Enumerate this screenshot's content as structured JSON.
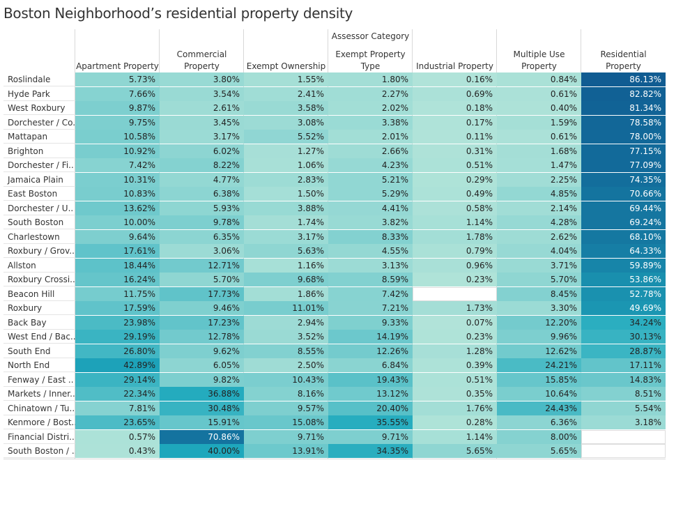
{
  "title": "Boston Neighborhood’s residential property density",
  "chart_data": {
    "type": "heatmap",
    "title": "Boston Neighborhood’s residential property density",
    "column_axis_label": "Assessor Category",
    "columns": [
      [
        "Apartment Property"
      ],
      [
        "Commercial",
        "Property"
      ],
      [
        "Exempt Ownership"
      ],
      [
        "Exempt Property",
        "Type"
      ],
      [
        "Industrial Property"
      ],
      [
        "Multiple Use",
        "Property"
      ],
      [
        "Residential",
        "Property"
      ]
    ],
    "rows": [
      {
        "label": "Roslindale",
        "values": [
          5.73,
          3.8,
          1.55,
          1.8,
          0.16,
          0.84,
          86.13
        ]
      },
      {
        "label": "Hyde Park",
        "values": [
          7.66,
          3.54,
          2.41,
          2.27,
          0.69,
          0.61,
          82.82
        ]
      },
      {
        "label": "West Roxbury",
        "values": [
          9.87,
          2.61,
          3.58,
          2.02,
          0.18,
          0.4,
          81.34
        ]
      },
      {
        "label": "Dorchester / Co..",
        "values": [
          9.75,
          3.45,
          3.08,
          3.38,
          0.17,
          1.59,
          78.58
        ]
      },
      {
        "label": "Mattapan",
        "values": [
          10.58,
          3.17,
          5.52,
          2.01,
          0.11,
          0.61,
          78.0
        ]
      },
      {
        "label": "Brighton",
        "values": [
          10.92,
          6.02,
          1.27,
          2.66,
          0.31,
          1.68,
          77.15
        ]
      },
      {
        "label": "Dorchester / Fi..",
        "values": [
          7.42,
          8.22,
          1.06,
          4.23,
          0.51,
          1.47,
          77.09
        ]
      },
      {
        "label": "Jamaica Plain",
        "values": [
          10.31,
          4.77,
          2.83,
          5.21,
          0.29,
          2.25,
          74.35
        ]
      },
      {
        "label": "East Boston",
        "values": [
          10.83,
          6.38,
          1.5,
          5.29,
          0.49,
          4.85,
          70.66
        ]
      },
      {
        "label": "Dorchester / U..",
        "values": [
          13.62,
          5.93,
          3.88,
          4.41,
          0.58,
          2.14,
          69.44
        ]
      },
      {
        "label": "South Boston",
        "values": [
          10.0,
          9.78,
          1.74,
          3.82,
          1.14,
          4.28,
          69.24
        ]
      },
      {
        "label": "Charlestown",
        "values": [
          9.64,
          6.35,
          3.17,
          8.33,
          1.78,
          2.62,
          68.1
        ]
      },
      {
        "label": "Roxbury / Grov..",
        "values": [
          17.61,
          3.06,
          5.63,
          4.55,
          0.79,
          4.04,
          64.33
        ]
      },
      {
        "label": "Allston",
        "values": [
          18.44,
          12.71,
          1.16,
          3.13,
          0.96,
          3.71,
          59.89
        ]
      },
      {
        "label": "Roxbury Crossi..",
        "values": [
          16.24,
          5.7,
          9.68,
          8.59,
          0.23,
          5.7,
          53.86
        ]
      },
      {
        "label": "Beacon Hill",
        "values": [
          11.75,
          17.73,
          1.86,
          7.42,
          null,
          8.45,
          52.78
        ]
      },
      {
        "label": "Roxbury",
        "values": [
          17.59,
          9.46,
          11.01,
          7.21,
          1.73,
          3.3,
          49.69
        ]
      },
      {
        "label": "Back Bay",
        "values": [
          23.98,
          17.23,
          2.94,
          9.33,
          0.07,
          12.2,
          34.24
        ]
      },
      {
        "label": "West End / Bac..",
        "values": [
          29.19,
          12.78,
          3.52,
          14.19,
          0.23,
          9.96,
          30.13
        ]
      },
      {
        "label": "South End",
        "values": [
          26.8,
          9.62,
          8.55,
          12.26,
          1.28,
          12.62,
          28.87
        ]
      },
      {
        "label": "North End",
        "values": [
          42.89,
          6.05,
          2.5,
          6.84,
          0.39,
          24.21,
          17.11
        ]
      },
      {
        "label": "Fenway / East ..",
        "values": [
          29.14,
          9.82,
          10.43,
          19.43,
          0.51,
          15.85,
          14.83
        ]
      },
      {
        "label": "Markets / Inner..",
        "values": [
          22.34,
          36.88,
          8.16,
          13.12,
          0.35,
          10.64,
          8.51
        ]
      },
      {
        "label": "Chinatown / Tu..",
        "values": [
          7.81,
          30.48,
          9.57,
          20.4,
          1.76,
          24.43,
          5.54
        ]
      },
      {
        "label": "Kenmore / Bost..",
        "values": [
          23.65,
          15.91,
          15.08,
          35.55,
          0.28,
          6.36,
          3.18
        ]
      },
      {
        "label": "Financial Distri..",
        "values": [
          0.57,
          70.86,
          9.71,
          9.71,
          1.14,
          8.0,
          null
        ]
      },
      {
        "label": "South Boston / ..",
        "values": [
          0.43,
          40.0,
          13.91,
          34.35,
          5.65,
          5.65,
          null
        ]
      }
    ],
    "value_format": "percent_2dp",
    "color_scale": {
      "low": "#b2e4d9",
      "mid": "#1ea9bd",
      "high": "#105c92"
    }
  }
}
